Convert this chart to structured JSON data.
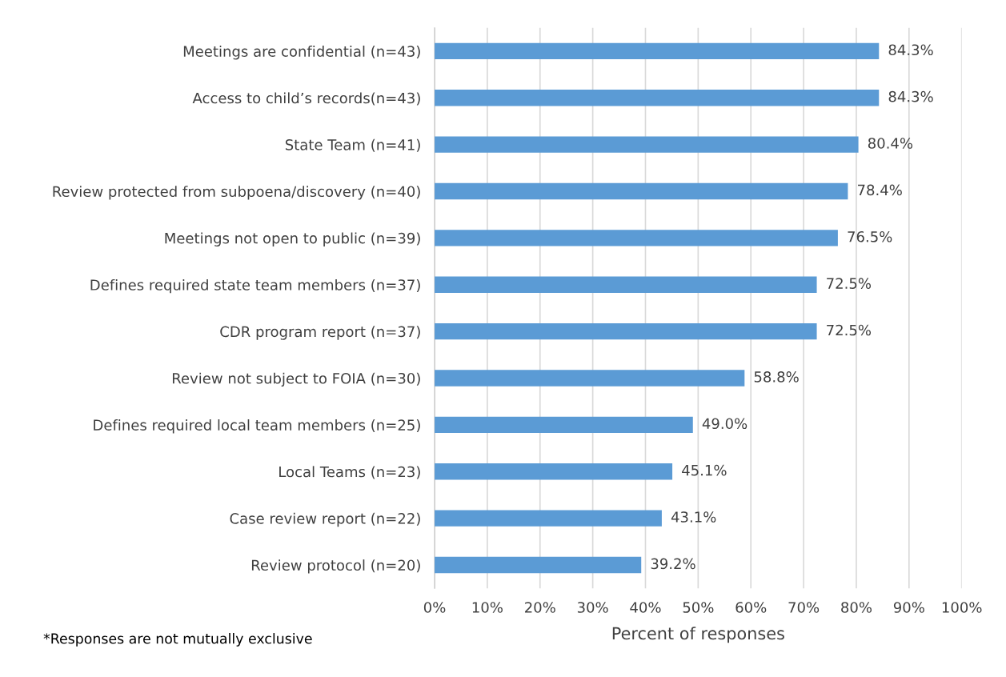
{
  "chart_data": {
    "type": "bar",
    "orientation": "horizontal",
    "xlabel": "Percent of responses",
    "categories": [
      "Meetings are confidential (n=43)",
      "Access to child’s records(n=43)",
      "State Team (n=41)",
      "Review protected from subpoena/discovery (n=40)",
      "Meetings not open to public (n=39)",
      "Defines required state team members (n=37)",
      "CDR program report (n=37)",
      "Review not subject to FOIA (n=30)",
      "Defines required local team members (n=25)",
      "Local Teams (n=23)",
      "Case review report (n=22)",
      "Review protocol (n=20)"
    ],
    "values": [
      84.3,
      84.3,
      80.4,
      78.4,
      76.5,
      72.5,
      72.5,
      58.8,
      49.0,
      45.1,
      43.1,
      39.2
    ],
    "value_labels": [
      "84.3%",
      "84.3%",
      "80.4%",
      "78.4%",
      "76.5%",
      "72.5%",
      "72.5%",
      "58.8%",
      "49.0%",
      "45.1%",
      "43.1%",
      "39.2%"
    ],
    "color": "#5b9bd5",
    "xlim": [
      0,
      100
    ],
    "xticks": [
      {
        "value": 0,
        "label": "0%"
      },
      {
        "value": 10,
        "label": "10%"
      },
      {
        "value": 20,
        "label": "20%"
      },
      {
        "value": 30,
        "label": "30%"
      },
      {
        "value": 40,
        "label": "40%"
      },
      {
        "value": 50,
        "label": "50%"
      },
      {
        "value": 60,
        "label": "60%"
      },
      {
        "value": 70,
        "label": "70%"
      },
      {
        "value": 80,
        "label": "80%"
      },
      {
        "value": 90,
        "label": "90%"
      },
      {
        "value": 100,
        "label": "100%"
      }
    ],
    "grid": "x",
    "legend": false,
    "annotations": [
      "*Responses are not mutually exclusive"
    ]
  }
}
